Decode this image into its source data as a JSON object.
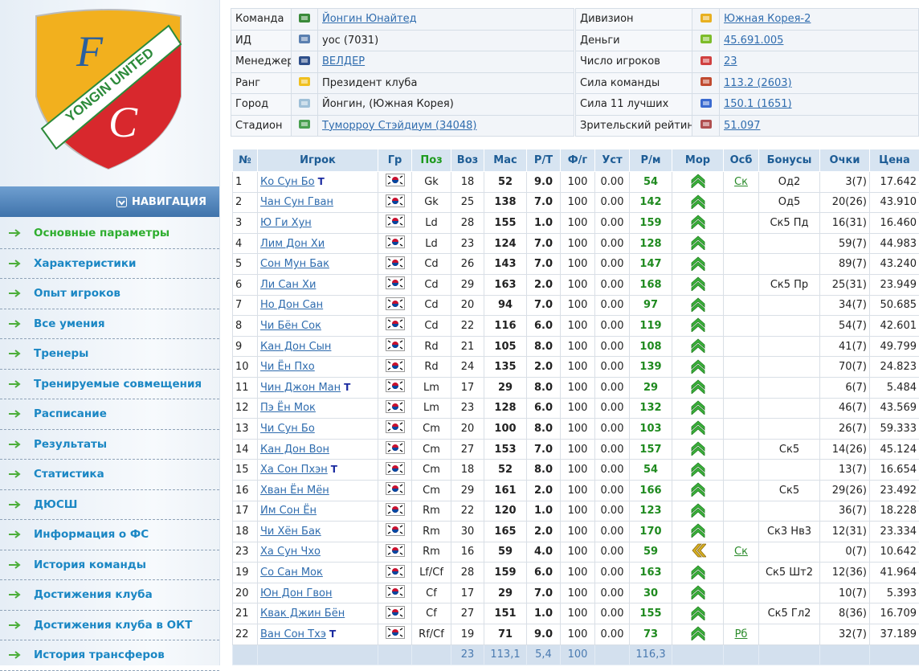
{
  "logo": {
    "top_letter": "F",
    "bottom_letter": "C",
    "band": "YONGIN UNITED"
  },
  "nav": {
    "title": "НАВИГАЦИЯ",
    "items": [
      "Основные параметры",
      "Характеристики",
      "Опыт игроков",
      "Все умения",
      "Тренеры",
      "Тренируемые совмещения",
      "Расписание",
      "Результаты",
      "Статистика",
      "ДЮСШ",
      "Информация о ФС",
      "История команды",
      "Достижения клуба",
      "Достижения клуба в ОКТ",
      "История трансферов"
    ],
    "active": 0
  },
  "info": {
    "left": [
      {
        "label": "Команда",
        "value": "Йонгин Юнайтед",
        "link": true
      },
      {
        "label": "ИД",
        "value": "yoc (7031)"
      },
      {
        "label": "Менеджер",
        "value": "ВЕЛДЕР",
        "link": true
      },
      {
        "label": "Ранг",
        "value": "Президент клуба"
      },
      {
        "label": "Город",
        "value": "Йонгин, (Южная Корея)"
      },
      {
        "label": "Стадион",
        "value": "Туморроу Стэйдиум (34048)",
        "link": true
      }
    ],
    "right": [
      {
        "label": "Дивизион",
        "value": "Южная Корея-2",
        "link": true
      },
      {
        "label": "Деньги",
        "value": "45.691.005",
        "link": true
      },
      {
        "label": "Число игроков",
        "value": "23",
        "link": true
      },
      {
        "label": "Сила команды",
        "value": "113.2 (2603)",
        "link": true
      },
      {
        "label": "Сила 11 лучших",
        "value": "150.1 (1651)",
        "link": true
      },
      {
        "label": "Зрительский рейтинг",
        "value": "51.097",
        "link": true
      }
    ]
  },
  "players": {
    "columns": [
      "№",
      "Игрок",
      "Гр",
      "Поз",
      "Воз",
      "Мас",
      "Р/Т",
      "Ф/г",
      "Уст",
      "Р/м",
      "Мор",
      "Осб",
      "Бонусы",
      "Очки",
      "Цена"
    ],
    "rows": [
      {
        "no": "1",
        "name": "Ко Сун Бо",
        "tag": "Т",
        "pos": "Gk",
        "age": "18",
        "mas": "52",
        "rt": "9.0",
        "fg": "100",
        "ust": "0.00",
        "rm": "54",
        "morale": "up",
        "osb": "Ск",
        "bonus": "Од2",
        "points": "3(7)",
        "price": "17.642"
      },
      {
        "no": "2",
        "name": "Чан Сун Гван",
        "pos": "Gk",
        "age": "25",
        "mas": "138",
        "rt": "7.0",
        "fg": "100",
        "ust": "0.00",
        "rm": "142",
        "morale": "up",
        "bonus": "Од5",
        "points": "20(26)",
        "price": "43.910"
      },
      {
        "no": "3",
        "name": "Ю Ги Хун",
        "pos": "Ld",
        "age": "28",
        "mas": "155",
        "rt": "1.0",
        "fg": "100",
        "ust": "0.00",
        "rm": "159",
        "morale": "up",
        "bonus": "Ск5 Пд",
        "points": "16(31)",
        "price": "16.460"
      },
      {
        "no": "4",
        "name": "Лим Дон Хи",
        "pos": "Ld",
        "age": "23",
        "mas": "124",
        "rt": "7.0",
        "fg": "100",
        "ust": "0.00",
        "rm": "128",
        "morale": "up",
        "points": "59(7)",
        "price": "44.983"
      },
      {
        "no": "5",
        "name": "Сон Мун Бак",
        "pos": "Cd",
        "age": "26",
        "mas": "143",
        "rt": "7.0",
        "fg": "100",
        "ust": "0.00",
        "rm": "147",
        "morale": "up",
        "points": "89(7)",
        "price": "43.240"
      },
      {
        "no": "6",
        "name": "Ли Сан Хи",
        "pos": "Cd",
        "age": "29",
        "mas": "163",
        "rt": "2.0",
        "fg": "100",
        "ust": "0.00",
        "rm": "168",
        "morale": "up",
        "bonus": "Ск5 Пр",
        "points": "25(31)",
        "price": "23.949"
      },
      {
        "no": "7",
        "name": "Но Дон Сан",
        "pos": "Cd",
        "age": "20",
        "mas": "94",
        "rt": "7.0",
        "fg": "100",
        "ust": "0.00",
        "rm": "97",
        "morale": "up",
        "points": "34(7)",
        "price": "50.685"
      },
      {
        "no": "8",
        "name": "Чи Бён Сок",
        "pos": "Cd",
        "age": "22",
        "mas": "116",
        "rt": "6.0",
        "fg": "100",
        "ust": "0.00",
        "rm": "119",
        "morale": "up",
        "points": "54(7)",
        "price": "42.601"
      },
      {
        "no": "9",
        "name": "Кан Дон Сын",
        "pos": "Rd",
        "age": "21",
        "mas": "105",
        "rt": "8.0",
        "fg": "100",
        "ust": "0.00",
        "rm": "108",
        "morale": "up",
        "points": "41(7)",
        "price": "49.799"
      },
      {
        "no": "10",
        "name": "Чи Ён Пхо",
        "pos": "Rd",
        "age": "24",
        "mas": "135",
        "rt": "2.0",
        "fg": "100",
        "ust": "0.00",
        "rm": "139",
        "morale": "up",
        "points": "70(7)",
        "price": "24.823"
      },
      {
        "no": "11",
        "name": "Чин Джон Ман",
        "tag": "Т",
        "pos": "Lm",
        "age": "17",
        "mas": "29",
        "rt": "8.0",
        "fg": "100",
        "ust": "0.00",
        "rm": "29",
        "morale": "up",
        "points": "6(7)",
        "price": "5.484"
      },
      {
        "no": "12",
        "name": "Пэ Ён Мок",
        "pos": "Lm",
        "age": "23",
        "mas": "128",
        "rt": "6.0",
        "fg": "100",
        "ust": "0.00",
        "rm": "132",
        "morale": "up",
        "points": "46(7)",
        "price": "43.569"
      },
      {
        "no": "13",
        "name": "Чи Сун Бо",
        "pos": "Cm",
        "age": "20",
        "mas": "100",
        "rt": "8.0",
        "fg": "100",
        "ust": "0.00",
        "rm": "103",
        "morale": "up",
        "points": "26(7)",
        "price": "59.333"
      },
      {
        "no": "14",
        "name": "Кан Дон Вон",
        "pos": "Cm",
        "age": "27",
        "mas": "153",
        "rt": "7.0",
        "fg": "100",
        "ust": "0.00",
        "rm": "157",
        "morale": "up",
        "bonus": "Ск5",
        "points": "14(26)",
        "price": "45.124"
      },
      {
        "no": "15",
        "name": "Ха Сон Пхэн",
        "tag": "Т",
        "pos": "Cm",
        "age": "18",
        "mas": "52",
        "rt": "8.0",
        "fg": "100",
        "ust": "0.00",
        "rm": "54",
        "morale": "up",
        "points": "13(7)",
        "price": "16.654"
      },
      {
        "no": "16",
        "name": "Хван Ён Мён",
        "pos": "Cm",
        "age": "29",
        "mas": "161",
        "rt": "2.0",
        "fg": "100",
        "ust": "0.00",
        "rm": "166",
        "morale": "up",
        "bonus": "Ск5",
        "points": "29(26)",
        "price": "23.492"
      },
      {
        "no": "17",
        "name": "Им Сон Ён",
        "pos": "Rm",
        "age": "22",
        "mas": "120",
        "rt": "1.0",
        "fg": "100",
        "ust": "0.00",
        "rm": "123",
        "morale": "up",
        "points": "36(7)",
        "price": "18.228"
      },
      {
        "no": "18",
        "name": "Чи Хён Бак",
        "pos": "Rm",
        "age": "30",
        "mas": "165",
        "rt": "2.0",
        "fg": "100",
        "ust": "0.00",
        "rm": "170",
        "morale": "up",
        "bonus": "Ск3 Нв3",
        "points": "12(31)",
        "price": "23.334"
      },
      {
        "no": "23",
        "name": "Ха Сун Чхо",
        "pos": "Rm",
        "age": "16",
        "mas": "59",
        "rt": "4.0",
        "fg": "100",
        "ust": "0.00",
        "rm": "59",
        "morale": "down",
        "osb": "Ск",
        "points": "0(7)",
        "price": "10.642"
      },
      {
        "no": "19",
        "name": "Со Сан Мок",
        "pos": "Lf/Cf",
        "age": "28",
        "mas": "159",
        "rt": "6.0",
        "fg": "100",
        "ust": "0.00",
        "rm": "163",
        "morale": "up",
        "bonus": "Ск5 Шт2",
        "points": "12(36)",
        "price": "41.964"
      },
      {
        "no": "20",
        "name": "Юн Дон Гвон",
        "pos": "Cf",
        "age": "17",
        "mas": "29",
        "rt": "7.0",
        "fg": "100",
        "ust": "0.00",
        "rm": "30",
        "morale": "up",
        "points": "10(7)",
        "price": "5.393"
      },
      {
        "no": "21",
        "name": "Квак Джин Бён",
        "pos": "Cf",
        "age": "27",
        "mas": "151",
        "rt": "1.0",
        "fg": "100",
        "ust": "0.00",
        "rm": "155",
        "morale": "up",
        "bonus": "Ск5 Гл2",
        "points": "8(36)",
        "price": "16.709"
      },
      {
        "no": "22",
        "name": "Ван Сон Тхэ",
        "tag": "Т",
        "pos": "Rf/Cf",
        "age": "19",
        "mas": "71",
        "rt": "9.0",
        "fg": "100",
        "ust": "0.00",
        "rm": "73",
        "morale": "up",
        "osb": "Рб",
        "points": "32(7)",
        "price": "37.189"
      }
    ],
    "footer": {
      "age": "23",
      "mas": "113,1",
      "rt": "5,4",
      "fg": "100",
      "rm": "116,3"
    }
  }
}
